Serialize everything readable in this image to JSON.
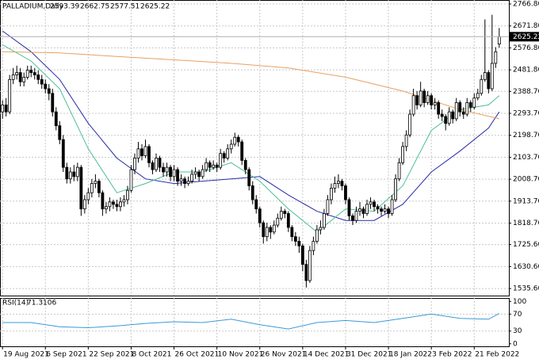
{
  "chart_data": [
    {
      "type": "candlestick",
      "title": "PALLADIUM,Daily",
      "up_color": "#ffffff",
      "down_color": "#000000",
      "grid": true,
      "xlim": [
        -0.7,
        141.7
      ],
      "ylim": [
        1505,
        2784
      ],
      "yticks": [
        {
          "value": 2766.8,
          "label": "2766.80"
        },
        {
          "value": 2671.8,
          "label": "2671.80"
        },
        {
          "value": 2576.8,
          "label": "2576.80"
        },
        {
          "value": 2481.8,
          "label": "2481.80"
        },
        {
          "value": 2388.7,
          "label": "2388.70"
        },
        {
          "value": 2293.7,
          "label": "2293.70"
        },
        {
          "value": 2198.7,
          "label": "2198.70"
        },
        {
          "value": 2103.7,
          "label": "2103.70"
        },
        {
          "value": 2008.7,
          "label": "2008.70"
        },
        {
          "value": 1913.7,
          "label": "1913.70"
        },
        {
          "value": 1818.7,
          "label": "1818.70"
        },
        {
          "value": 1725.6,
          "label": "1725.60"
        },
        {
          "value": 1630.6,
          "label": "1630.60"
        },
        {
          "value": 1535.6,
          "label": "1535.60"
        }
      ],
      "xticks": [
        {
          "value": 0,
          "label": "19 Aug 2021"
        },
        {
          "value": 12,
          "label": "6 Sep 2021"
        },
        {
          "value": 24,
          "label": "22 Sep 2021"
        },
        {
          "value": 36,
          "label": "8 Oct 2021"
        },
        {
          "value": 48,
          "label": "26 Oct 2021"
        },
        {
          "value": 60,
          "label": "10 Nov 2021"
        },
        {
          "value": 72,
          "label": "26 Nov 2021"
        },
        {
          "value": 84,
          "label": "14 Dec 2021"
        },
        {
          "value": 96,
          "label": "31 Dec 2021"
        },
        {
          "value": 108,
          "label": "18 Jan 2022"
        },
        {
          "value": 120,
          "label": "3 Feb 2022"
        },
        {
          "value": 132,
          "label": "21 Feb 2022"
        }
      ],
      "candles": [
        [
          2300,
          2350,
          2270,
          2330
        ],
        [
          2330,
          2360,
          2280,
          2300
        ],
        [
          2300,
          2460,
          2290,
          2440
        ],
        [
          2440,
          2490,
          2420,
          2460
        ],
        [
          2460,
          2500,
          2440,
          2470
        ],
        [
          2470,
          2490,
          2410,
          2430
        ],
        [
          2430,
          2470,
          2410,
          2450
        ],
        [
          2450,
          2500,
          2440,
          2480
        ],
        [
          2480,
          2500,
          2450,
          2470
        ],
        [
          2470,
          2490,
          2440,
          2460
        ],
        [
          2460,
          2480,
          2420,
          2440
        ],
        [
          2440,
          2460,
          2400,
          2420
        ],
        [
          2420,
          2440,
          2380,
          2400
        ],
        [
          2400,
          2420,
          2350,
          2380
        ],
        [
          2380,
          2400,
          2280,
          2300
        ],
        [
          2300,
          2320,
          2220,
          2240
        ],
        [
          2240,
          2260,
          2160,
          2180
        ],
        [
          2180,
          2200,
          2040,
          2060
        ],
        [
          2060,
          2080,
          1990,
          2010
        ],
        [
          2010,
          2060,
          1990,
          2040
        ],
        [
          2040,
          2070,
          2000,
          2020
        ],
        [
          2020,
          2080,
          2000,
          2060
        ],
        [
          2060,
          2070,
          1850,
          1880
        ],
        [
          1880,
          1940,
          1860,
          1920
        ],
        [
          1920,
          1970,
          1900,
          1950
        ],
        [
          1950,
          2010,
          1930,
          1990
        ],
        [
          1990,
          2030,
          1970,
          2000
        ],
        [
          2000,
          2010,
          1930,
          1950
        ],
        [
          1950,
          1960,
          1850,
          1880
        ],
        [
          1880,
          1910,
          1860,
          1890
        ],
        [
          1890,
          1930,
          1870,
          1910
        ],
        [
          1910,
          1920,
          1880,
          1900
        ],
        [
          1900,
          1920,
          1870,
          1890
        ],
        [
          1890,
          1930,
          1870,
          1910
        ],
        [
          1910,
          1940,
          1890,
          1920
        ],
        [
          1920,
          1980,
          1900,
          1960
        ],
        [
          1960,
          2070,
          1950,
          2050
        ],
        [
          2050,
          2120,
          2030,
          2100
        ],
        [
          2100,
          2170,
          2080,
          2140
        ],
        [
          2140,
          2160,
          2090,
          2110
        ],
        [
          2110,
          2180,
          2100,
          2150
        ],
        [
          2150,
          2160,
          2060,
          2080
        ],
        [
          2080,
          2090,
          2030,
          2050
        ],
        [
          2050,
          2120,
          2040,
          2100
        ],
        [
          2100,
          2110,
          2040,
          2060
        ],
        [
          2060,
          2080,
          2020,
          2040
        ],
        [
          2040,
          2080,
          2020,
          2060
        ],
        [
          2060,
          2070,
          2000,
          2020
        ],
        [
          2020,
          2070,
          2000,
          2050
        ],
        [
          2050,
          2060,
          1980,
          2000
        ],
        [
          2000,
          2030,
          1980,
          2010
        ],
        [
          2010,
          2020,
          1970,
          1990
        ],
        [
          1990,
          2020,
          1980,
          2000
        ],
        [
          2000,
          2050,
          1990,
          2030
        ],
        [
          2030,
          2060,
          2010,
          2040
        ],
        [
          2040,
          2050,
          2000,
          2020
        ],
        [
          2020,
          2070,
          2010,
          2050
        ],
        [
          2050,
          2100,
          2040,
          2080
        ],
        [
          2080,
          2090,
          2040,
          2060
        ],
        [
          2060,
          2090,
          2050,
          2070
        ],
        [
          2070,
          2080,
          2040,
          2060
        ],
        [
          2060,
          2140,
          2050,
          2120
        ],
        [
          2120,
          2130,
          2080,
          2100
        ],
        [
          2100,
          2160,
          2090,
          2140
        ],
        [
          2140,
          2180,
          2120,
          2160
        ],
        [
          2160,
          2210,
          2150,
          2190
        ],
        [
          2190,
          2200,
          2150,
          2170
        ],
        [
          2170,
          2180,
          2070,
          2090
        ],
        [
          2090,
          2100,
          2030,
          2050
        ],
        [
          2050,
          2060,
          1960,
          1980
        ],
        [
          1980,
          2000,
          1900,
          1920
        ],
        [
          1920,
          1940,
          1860,
          1880
        ],
        [
          1880,
          1890,
          1800,
          1820
        ],
        [
          1820,
          1830,
          1730,
          1760
        ],
        [
          1760,
          1820,
          1740,
          1800
        ],
        [
          1800,
          1810,
          1750,
          1780
        ],
        [
          1780,
          1830,
          1770,
          1810
        ],
        [
          1810,
          1860,
          1800,
          1840
        ],
        [
          1840,
          1890,
          1830,
          1870
        ],
        [
          1870,
          1880,
          1840,
          1860
        ],
        [
          1860,
          1870,
          1780,
          1800
        ],
        [
          1800,
          1810,
          1740,
          1760
        ],
        [
          1760,
          1780,
          1720,
          1740
        ],
        [
          1740,
          1760,
          1690,
          1720
        ],
        [
          1720,
          1730,
          1610,
          1640
        ],
        [
          1640,
          1660,
          1540,
          1570
        ],
        [
          1570,
          1720,
          1560,
          1700
        ],
        [
          1700,
          1760,
          1680,
          1740
        ],
        [
          1740,
          1810,
          1730,
          1790
        ],
        [
          1790,
          1830,
          1770,
          1800
        ],
        [
          1800,
          1880,
          1790,
          1860
        ],
        [
          1860,
          1940,
          1850,
          1920
        ],
        [
          1920,
          1990,
          1900,
          1970
        ],
        [
          1970,
          2020,
          1950,
          1990
        ],
        [
          1990,
          2030,
          1970,
          2000
        ],
        [
          2000,
          2010,
          1960,
          1980
        ],
        [
          1980,
          1990,
          1900,
          1920
        ],
        [
          1920,
          1930,
          1830,
          1850
        ],
        [
          1850,
          1860,
          1810,
          1830
        ],
        [
          1830,
          1890,
          1820,
          1870
        ],
        [
          1870,
          1910,
          1850,
          1880
        ],
        [
          1880,
          1890,
          1840,
          1860
        ],
        [
          1860,
          1920,
          1850,
          1900
        ],
        [
          1900,
          1930,
          1880,
          1910
        ],
        [
          1910,
          1920,
          1870,
          1890
        ],
        [
          1890,
          1900,
          1860,
          1880
        ],
        [
          1880,
          1890,
          1850,
          1870
        ],
        [
          1870,
          1900,
          1860,
          1880
        ],
        [
          1880,
          1890,
          1840,
          1860
        ],
        [
          1860,
          1940,
          1850,
          1920
        ],
        [
          1920,
          2030,
          1910,
          2010
        ],
        [
          2010,
          2100,
          2000,
          2080
        ],
        [
          2080,
          2170,
          2070,
          2150
        ],
        [
          2150,
          2220,
          2130,
          2200
        ],
        [
          2200,
          2310,
          2190,
          2290
        ],
        [
          2290,
          2400,
          2280,
          2370
        ],
        [
          2370,
          2390,
          2310,
          2330
        ],
        [
          2330,
          2430,
          2320,
          2390
        ],
        [
          2390,
          2400,
          2320,
          2340
        ],
        [
          2340,
          2390,
          2330,
          2370
        ],
        [
          2370,
          2380,
          2310,
          2330
        ],
        [
          2330,
          2360,
          2310,
          2340
        ],
        [
          2340,
          2350,
          2270,
          2290
        ],
        [
          2290,
          2310,
          2260,
          2280
        ],
        [
          2280,
          2290,
          2220,
          2250
        ],
        [
          2250,
          2320,
          2240,
          2300
        ],
        [
          2300,
          2310,
          2250,
          2270
        ],
        [
          2270,
          2360,
          2260,
          2340
        ],
        [
          2340,
          2350,
          2280,
          2300
        ],
        [
          2300,
          2320,
          2270,
          2290
        ],
        [
          2290,
          2360,
          2280,
          2340
        ],
        [
          2340,
          2350,
          2300,
          2320
        ],
        [
          2320,
          2380,
          2310,
          2360
        ],
        [
          2360,
          2400,
          2350,
          2380
        ],
        [
          2380,
          2460,
          2370,
          2440
        ],
        [
          2440,
          2700,
          2430,
          2470
        ],
        [
          2470,
          2480,
          2380,
          2400
        ],
        [
          2400,
          2720,
          2390,
          2510
        ],
        [
          2510,
          2580,
          2490,
          2560
        ],
        [
          2593.39,
          2662.75,
          2577.51,
          2625.22
        ]
      ],
      "series": [
        {
          "color": "#2a2aa8",
          "x": [
            0,
            8,
            16,
            24,
            32,
            40,
            48,
            56,
            64,
            72,
            80,
            88,
            96,
            104,
            112,
            120,
            128,
            136,
            139
          ],
          "values": [
            2650,
            2560,
            2440,
            2250,
            2100,
            2010,
            1990,
            2000,
            2010,
            2020,
            1940,
            1870,
            1830,
            1830,
            1900,
            2040,
            2130,
            2230,
            2300
          ]
        },
        {
          "color": "#4cbf95",
          "x": [
            0,
            8,
            16,
            24,
            32,
            40,
            48,
            56,
            64,
            72,
            80,
            88,
            96,
            104,
            112,
            120,
            128,
            136,
            139
          ],
          "values": [
            2590,
            2520,
            2400,
            2140,
            1950,
            1990,
            2040,
            2040,
            2080,
            2000,
            1880,
            1780,
            1880,
            1870,
            1980,
            2220,
            2310,
            2330,
            2370
          ]
        },
        {
          "color": "#e8a060",
          "x": [
            0,
            16,
            32,
            48,
            64,
            80,
            96,
            112,
            128,
            139
          ],
          "values": [
            2560,
            2555,
            2540,
            2525,
            2510,
            2490,
            2450,
            2390,
            2310,
            2270
          ]
        }
      ]
    },
    {
      "type": "line",
      "title": "RSI(14)",
      "ylim": [
        -6,
        108
      ],
      "yticks": [
        100,
        70,
        30,
        0
      ],
      "series": [
        {
          "color": "#3a9ad9",
          "x": [
            0,
            8,
            16,
            24,
            32,
            40,
            48,
            56,
            64,
            72,
            80,
            88,
            96,
            104,
            112,
            120,
            128,
            136,
            139
          ],
          "values": [
            50,
            50,
            40,
            38,
            42,
            48,
            52,
            50,
            58,
            45,
            35,
            50,
            55,
            50,
            60,
            70,
            60,
            58,
            71.3106
          ]
        }
      ]
    }
  ]
}
